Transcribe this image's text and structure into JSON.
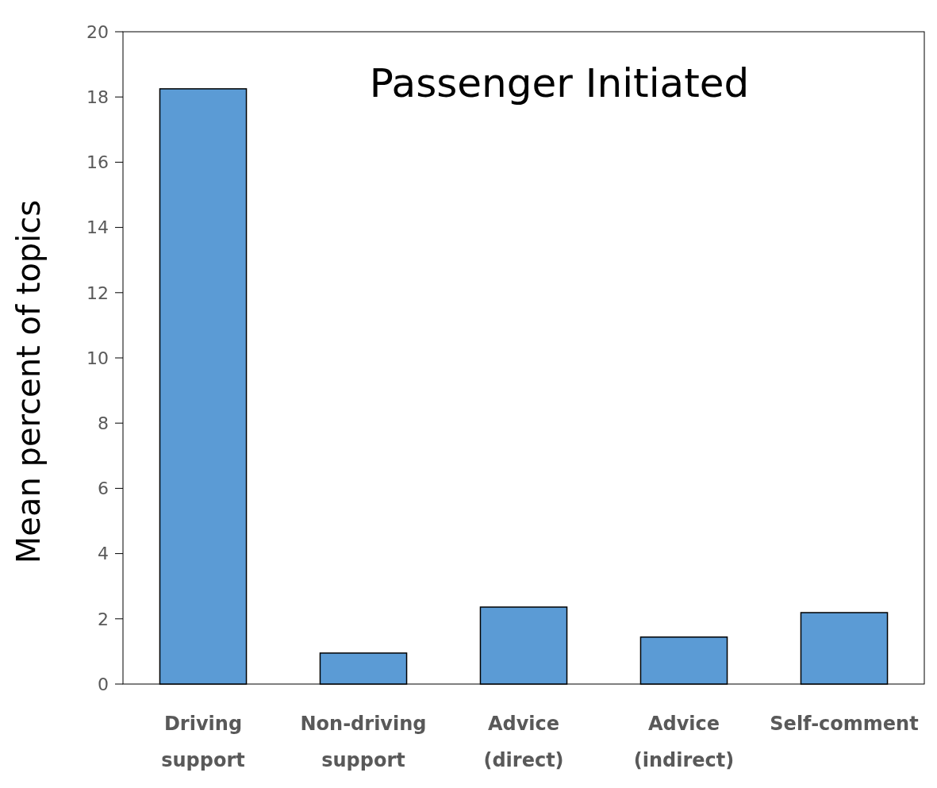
{
  "chart_data": {
    "type": "bar",
    "title": "Passenger Initiated",
    "ylabel": "Mean percent of topics",
    "categories": [
      "Driving support",
      "Non-driving support",
      "Advice (direct)",
      "Advice (indirect)",
      "Self-comment"
    ],
    "values": [
      18.25,
      0.95,
      2.36,
      1.44,
      2.19
    ],
    "color": "#5b9bd5",
    "ylim": [
      0,
      20
    ],
    "yticks": [
      0,
      2,
      4,
      6,
      8,
      10,
      12,
      14,
      16,
      18,
      20
    ],
    "grid": false
  }
}
